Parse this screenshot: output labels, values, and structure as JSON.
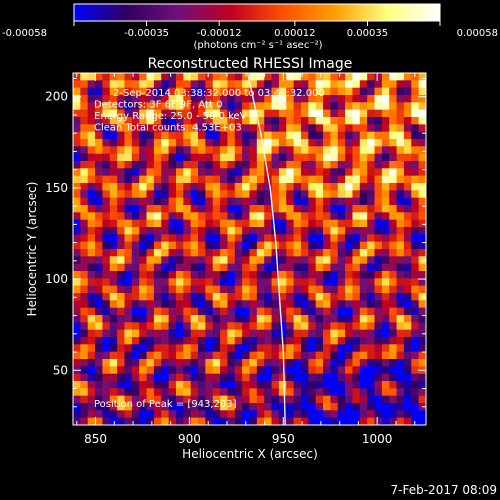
{
  "chart_data": {
    "type": "heatmap",
    "title": "Reconstructed RHESSI Image",
    "xlabel": "Heliocentric X (arcsec)",
    "ylabel": "Heliocentric Y (arcsec)",
    "xlim": [
      838,
      1026
    ],
    "ylim": [
      20,
      213
    ],
    "xticks": [
      850,
      900,
      950,
      1000
    ],
    "yticks": [
      50,
      100,
      150,
      200
    ],
    "colorbar": {
      "label": "(photons cm⁻² s⁻¹ asec⁻²)",
      "range": [
        -0.00058,
        0.00058
      ],
      "tick_values": [
        -0.00058,
        -0.00035,
        -0.00012,
        0.00012,
        0.00035,
        0.00058
      ],
      "tick_labels": [
        "-0.00058",
        "-0.00035",
        "-0.00012",
        "0.00012",
        "0.00035",
        "0.00058"
      ],
      "colors": [
        "#0000ff",
        "#300060",
        "#70107a",
        "#c00020",
        "#ff5000",
        "#ffa000",
        "#ffff80",
        "#ffffff"
      ]
    },
    "annotations": [
      "2-Sep-2014 03:38:32.000 to 03:40:32.000",
      "Detectors: 3F 6F 9F, Att 0",
      "Energy Range: 25.0 - 50.0 keV",
      "Clean     Total counts: 4.53E+03"
    ],
    "peak_label": "Position of Peak = [943,203]",
    "peak": {
      "x": 943,
      "y": 203
    },
    "limb_points": [
      [
        931,
        213
      ],
      [
        938,
        180
      ],
      [
        943,
        150
      ],
      [
        946,
        120
      ],
      [
        948,
        90
      ],
      [
        950,
        60
      ],
      [
        951,
        20
      ]
    ],
    "grid": false
  },
  "timestamp": "7-Feb-2017 08:09"
}
